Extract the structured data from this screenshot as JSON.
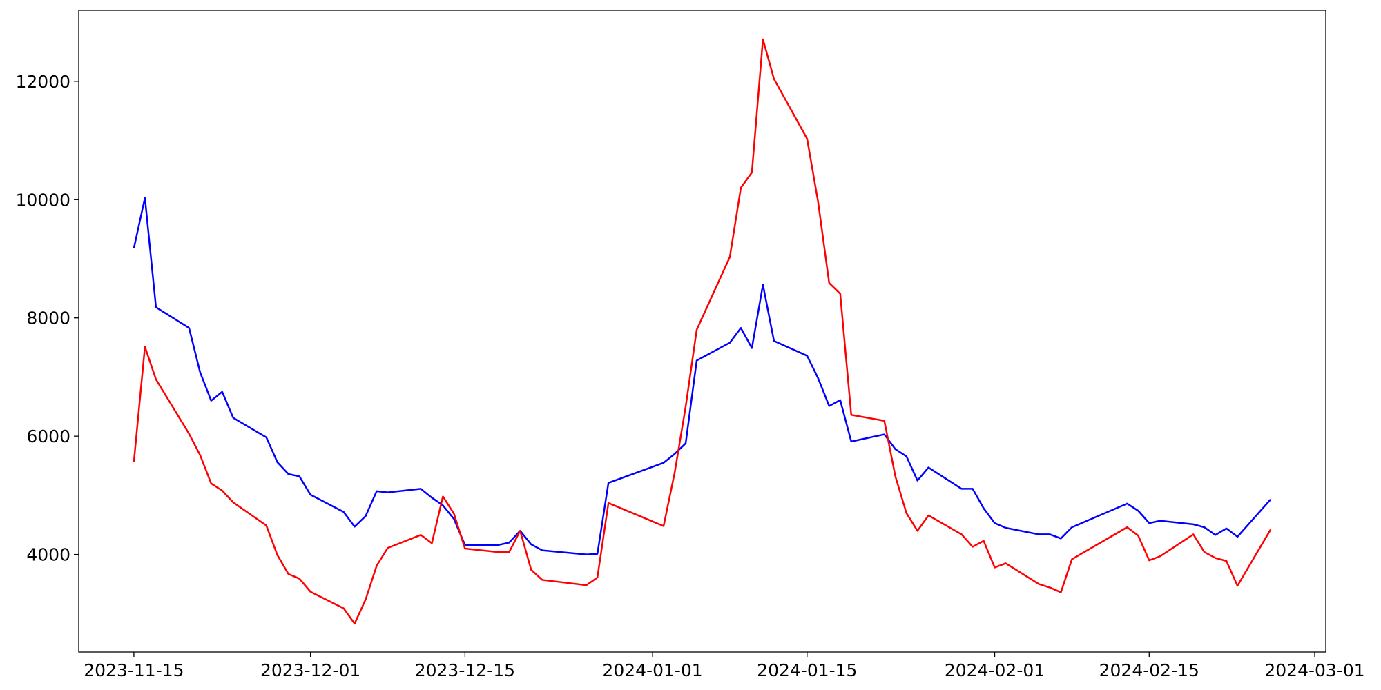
{
  "chart_data": {
    "type": "line",
    "x": [
      "2023-11-15",
      "2023-11-16",
      "2023-11-17",
      "2023-11-20",
      "2023-11-21",
      "2023-11-22",
      "2023-11-23",
      "2023-11-24",
      "2023-11-27",
      "2023-11-28",
      "2023-11-29",
      "2023-11-30",
      "2023-12-01",
      "2023-12-04",
      "2023-12-05",
      "2023-12-06",
      "2023-12-07",
      "2023-12-08",
      "2023-12-11",
      "2023-12-12",
      "2023-12-13",
      "2023-12-14",
      "2023-12-15",
      "2023-12-18",
      "2023-12-19",
      "2023-12-20",
      "2023-12-21",
      "2023-12-22",
      "2023-12-26",
      "2023-12-27",
      "2023-12-28",
      "2024-01-02",
      "2024-01-03",
      "2024-01-04",
      "2024-01-05",
      "2024-01-08",
      "2024-01-09",
      "2024-01-10",
      "2024-01-11",
      "2024-01-12",
      "2024-01-15",
      "2024-01-16",
      "2024-01-17",
      "2024-01-18",
      "2024-01-19",
      "2024-01-22",
      "2024-01-23",
      "2024-01-24",
      "2024-01-25",
      "2024-01-26",
      "2024-01-29",
      "2024-01-30",
      "2024-01-31",
      "2024-02-01",
      "2024-02-02",
      "2024-02-05",
      "2024-02-06",
      "2024-02-07",
      "2024-02-08",
      "2024-02-13",
      "2024-02-14",
      "2024-02-15",
      "2024-02-16",
      "2024-02-19",
      "2024-02-20",
      "2024-02-21",
      "2024-02-22",
      "2024-02-23",
      "2024-02-26"
    ],
    "series": [
      {
        "color": "#0000ff",
        "values": [
          9180,
          10030,
          8180,
          7830,
          7080,
          6600,
          6750,
          6310,
          5980,
          5560,
          5360,
          5320,
          5010,
          4720,
          4470,
          4650,
          5070,
          5050,
          5110,
          4960,
          4830,
          4600,
          4160,
          4160,
          4200,
          4400,
          4170,
          4070,
          4000,
          4010,
          5210,
          5550,
          5700,
          5880,
          7280,
          7580,
          7830,
          7490,
          8560,
          7610,
          7360,
          6980,
          6510,
          6610,
          5910,
          6030,
          5780,
          5660,
          5250,
          5470,
          5110,
          5110,
          4780,
          4530,
          4450,
          4340,
          4340,
          4270,
          4460,
          4860,
          4740,
          4530,
          4570,
          4510,
          4460,
          4330,
          4440,
          4300,
          4930
        ]
      },
      {
        "color": "#ff0000",
        "values": [
          5570,
          7510,
          6960,
          6040,
          5680,
          5200,
          5080,
          4880,
          4490,
          3990,
          3670,
          3590,
          3370,
          3090,
          2830,
          3240,
          3810,
          4110,
          4330,
          4190,
          4980,
          4690,
          4100,
          4040,
          4040,
          4400,
          3740,
          3570,
          3480,
          3610,
          4870,
          4480,
          5380,
          6500,
          7800,
          9030,
          10200,
          10460,
          12710,
          12040,
          11030,
          9960,
          8590,
          8410,
          6360,
          6260,
          5320,
          4700,
          4400,
          4660,
          4340,
          4130,
          4230,
          3780,
          3850,
          3500,
          3440,
          3360,
          3920,
          4460,
          4320,
          3900,
          3970,
          4340,
          4040,
          3940,
          3890,
          3470,
          4420
        ]
      }
    ],
    "xlim": [
      "2023-11-10",
      "2024-03-02"
    ],
    "xticks": [
      "2023-11-15",
      "2023-12-01",
      "2023-12-15",
      "2024-01-01",
      "2024-01-15",
      "2024-02-01",
      "2024-02-15",
      "2024-03-01"
    ],
    "ylim": [
      2350,
      13200
    ],
    "yticks": [
      4000,
      6000,
      8000,
      10000,
      12000
    ],
    "grid": false
  }
}
